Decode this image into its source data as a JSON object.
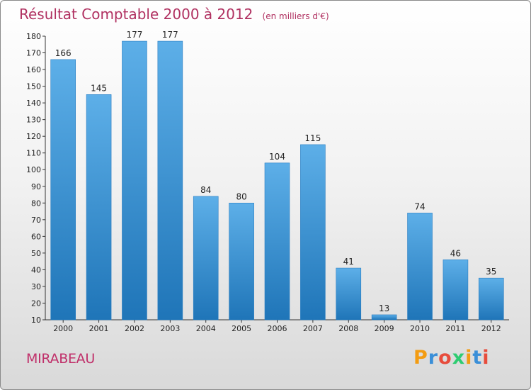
{
  "title": "Résultat Comptable 2000 à 2012",
  "unit_label": "(en milliers d'€)",
  "commune": "MIRABEAU",
  "logo": {
    "text": "Proxiti",
    "letter_colors": [
      "#f39c12",
      "#3a8fd8",
      "#e74c3c",
      "#2ecc71",
      "#f39c12",
      "#3a8fd8",
      "#e74c3c"
    ]
  },
  "colors": {
    "bar_top": "#5dafe8",
    "bar_bottom": "#1f75b8",
    "title": "#b03060",
    "axis": "#333333"
  },
  "chart_data": {
    "type": "bar",
    "categories": [
      "2000",
      "2001",
      "2002",
      "2003",
      "2004",
      "2005",
      "2006",
      "2007",
      "2008",
      "2009",
      "2010",
      "2011",
      "2012"
    ],
    "values": [
      166,
      145,
      177,
      177,
      84,
      80,
      104,
      115,
      41,
      13,
      74,
      46,
      35
    ],
    "ylim": [
      10,
      180
    ],
    "yticks": [
      10,
      20,
      30,
      40,
      50,
      60,
      70,
      80,
      90,
      100,
      110,
      120,
      130,
      140,
      150,
      160,
      170,
      180
    ],
    "grid": false,
    "data_labels": true
  }
}
